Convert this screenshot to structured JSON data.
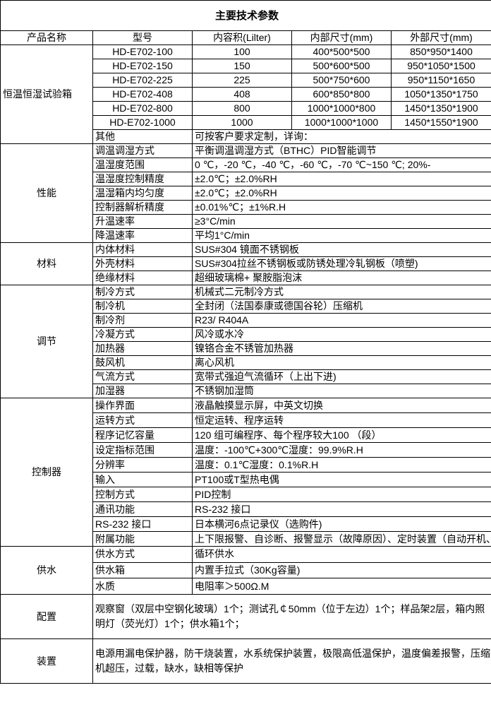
{
  "title": "主要技术参数",
  "header": [
    "产品名称",
    "型号",
    "内容积(Lilter)",
    "内部尺寸(mm)",
    "外部尺寸(mm)"
  ],
  "product": {
    "name": "恒温恒湿试验箱",
    "models": [
      [
        "HD-E702-100",
        "100",
        "400*500*500",
        "850*950*1400"
      ],
      [
        "HD-E702-150",
        "150",
        "500*600*500",
        "950*1050*1500"
      ],
      [
        "HD-E702-225",
        "225",
        "500*750*600",
        "950*1150*1650"
      ],
      [
        "HD-E702-408",
        "408",
        "600*850*800",
        "1050*1350*1750"
      ],
      [
        "HD-E702-800",
        "800",
        "1000*1000*800",
        "1450*1350*1900"
      ],
      [
        "HD-E702-1000",
        "1000",
        "1000*1000*1000",
        "1450*1550*1900"
      ]
    ],
    "other": [
      "其他",
      "可按客户要求定制，详询："
    ]
  },
  "sections": [
    {
      "name": "性能",
      "rows": [
        [
          "调温调湿方式",
          "平衡调温调湿方式（BTHC）PID智能调节"
        ],
        [
          "温湿度范围",
          "0 ℃，-20 ℃，-40 ℃，-60 ℃，-70 ℃~150 ℃; 20%-"
        ],
        [
          "温湿度控制精度",
          "±2.0℃；±2.0%RH"
        ],
        [
          "温湿箱内均匀度",
          "±2.0℃；±2.0%RH"
        ],
        [
          "控制器解析精度",
          "±0.01%℃；±1%R.H"
        ],
        [
          "升温速率",
          "≥3°C/min"
        ],
        [
          "降温速率",
          "平均1°C/min"
        ]
      ]
    },
    {
      "name": "材料",
      "rows": [
        [
          "内体材料",
          "SUS#304 镜面不锈钢板"
        ],
        [
          "外壳材料",
          "SUS#304拉丝不锈钢板或防锈处理冷轧钢板（喷塑)"
        ],
        [
          "绝缘材料",
          "超细玻璃棉+ 聚胺脂泡沫"
        ]
      ]
    },
    {
      "name": "调节",
      "rows": [
        [
          "制冷方式",
          "机械式二元制冷方式"
        ],
        [
          "制冷机",
          "全封闭（法国泰康或德国谷轮）压缩机"
        ],
        [
          "制冷剂",
          "R23/ R404A"
        ],
        [
          "冷凝方式",
          "风冷或水冷"
        ],
        [
          "加热器",
          "镍铬合金不锈管加热器"
        ],
        [
          "鼓风机",
          "离心风机"
        ],
        [
          "气流方式",
          "宽带式强迫气流循环（上出下进)"
        ],
        [
          "加湿器",
          "不锈钢加湿筒"
        ]
      ]
    },
    {
      "name": "控制器",
      "rows": [
        [
          "操作界面",
          "液晶触摸显示屏，中英文切换"
        ],
        [
          "运转方式",
          "恒定运转、程序运转"
        ],
        [
          "程序记忆容量",
          "120 组可编程序、每个程序较大100 （段）"
        ],
        [
          "设定指标范围",
          "温度：-100℃+300℃湿度：99.9%R.H"
        ],
        [
          "分辨率",
          "温度：0.1℃湿度：0.1%R.H"
        ],
        [
          "输入",
          "PT100或T型热电偶"
        ],
        [
          "控制方式",
          "PID控制"
        ],
        [
          "通讯功能",
          "RS-232 接口"
        ],
        [
          "RS-232 接口",
          "日本横河6点记录仪（选购件)"
        ],
        [
          "附属功能",
          "上下限报警、自诊断、报警显示（故障原因）、定时装置（自动开机、关机）、相序保护"
        ]
      ]
    },
    {
      "name": "供水",
      "rows": [
        [
          "供水方式",
          "循环供水"
        ],
        [
          "供水箱",
          "内置手拉式（30Kg容量)"
        ],
        [
          "水质",
          "电阻率＞500Ω.M"
        ]
      ]
    }
  ],
  "config": {
    "name": "配置",
    "text": "观察窗（双层中空钢化玻璃）1个；测试孔￠50mm（位于左边）1个；样品架2层，箱内照明灯（荧光灯）1个；供水箱1个；"
  },
  "devices": {
    "name": "装置",
    "text": "电源用漏电保护器，防干烧装置，水系统保护装置，极限高低温保护，温度偏差报警，压缩机超压，过载，缺水，缺相等保护"
  }
}
